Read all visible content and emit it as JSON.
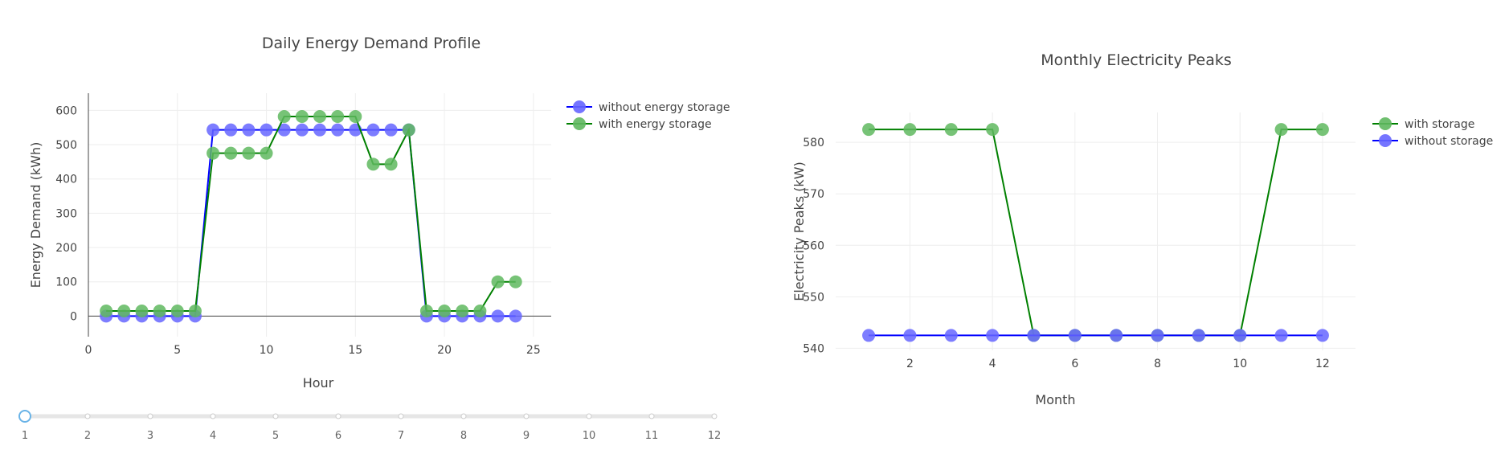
{
  "chart_data": [
    {
      "type": "line",
      "title": "Daily Energy Demand Profile",
      "xlabel": "Hour",
      "ylabel": "Energy Demand (kWh)",
      "xlim": [
        0,
        26
      ],
      "ylim": [
        -60,
        650
      ],
      "xticks": [
        0,
        5,
        10,
        15,
        20,
        25
      ],
      "yticks": [
        0,
        100,
        200,
        300,
        400,
        500,
        600
      ],
      "grid": true,
      "legend_position": "top-right",
      "x": [
        1,
        2,
        3,
        4,
        5,
        6,
        7,
        8,
        9,
        10,
        11,
        12,
        13,
        14,
        15,
        16,
        17,
        18,
        19,
        20,
        21,
        22,
        23,
        24
      ],
      "series": [
        {
          "name": "without energy storage",
          "line_color": "#0000ff",
          "marker_color": "#6666ff",
          "values": [
            0,
            0,
            0,
            0,
            0,
            0,
            543,
            543,
            543,
            543,
            543,
            543,
            543,
            543,
            543,
            543,
            543,
            543,
            0,
            0,
            0,
            0,
            0,
            0
          ]
        },
        {
          "name": "with energy storage",
          "line_color": "#008000",
          "marker_color": "#5fb85f",
          "values": [
            15,
            15,
            15,
            15,
            15,
            15,
            475,
            475,
            475,
            475,
            582,
            582,
            582,
            582,
            582,
            443,
            443,
            543,
            15,
            15,
            15,
            15,
            100,
            100
          ]
        }
      ]
    },
    {
      "type": "line",
      "title": "Monthly Electricity Peaks",
      "xlabel": "Month",
      "ylabel": "Electricity Peaks (kW)",
      "xlim": [
        0.2,
        12.8
      ],
      "ylim": [
        539.6,
        585.8
      ],
      "xticks": [
        2,
        4,
        6,
        8,
        10,
        12
      ],
      "yticks": [
        540,
        550,
        560,
        570,
        580
      ],
      "grid": true,
      "legend_position": "top-right",
      "x": [
        1,
        2,
        3,
        4,
        5,
        6,
        7,
        8,
        9,
        10,
        11,
        12
      ],
      "series": [
        {
          "name": "with storage",
          "line_color": "#008000",
          "marker_color": "#5fb85f",
          "values": [
            582.5,
            582.5,
            582.5,
            582.5,
            542.5,
            542.5,
            542.5,
            542.5,
            542.5,
            542.5,
            582.5,
            582.5
          ]
        },
        {
          "name": "without storage",
          "line_color": "#0000ff",
          "marker_color": "#6666ff",
          "values": [
            542.5,
            542.5,
            542.5,
            542.5,
            542.5,
            542.5,
            542.5,
            542.5,
            542.5,
            542.5,
            542.5,
            542.5
          ]
        }
      ]
    }
  ],
  "slider": {
    "labels": [
      "1",
      "2",
      "3",
      "4",
      "5",
      "6",
      "7",
      "8",
      "9",
      "10",
      "11",
      "12"
    ],
    "active_index": 0,
    "track_color": "#e6e6e6",
    "active_color": "#69b3e7"
  }
}
